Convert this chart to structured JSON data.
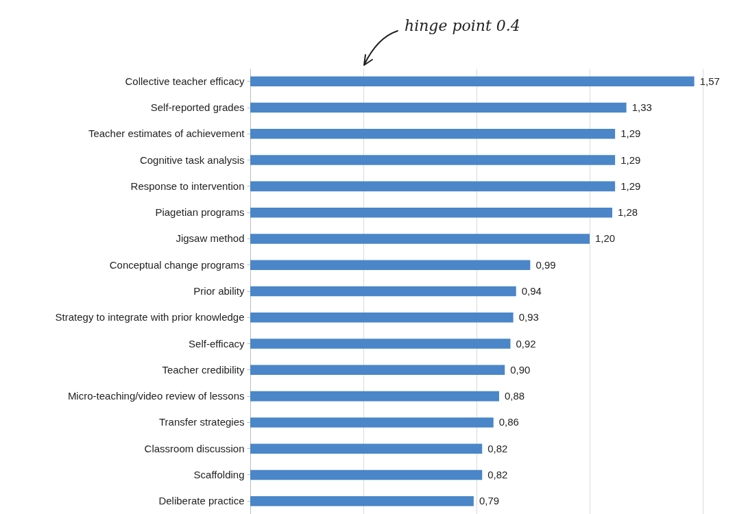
{
  "chart_data": {
    "type": "bar",
    "orientation": "horizontal",
    "categories": [
      "Collective teacher efficacy",
      "Self-reported grades",
      "Teacher estimates of achievement",
      "Cognitive task analysis",
      "Response to intervention",
      "Piagetian programs",
      "Jigsaw method",
      "Conceptual change programs",
      "Prior ability",
      "Strategy to integrate with prior knowledge",
      "Self-efficacy",
      "Teacher credibility",
      "Micro-teaching/video review of lessons",
      "Transfer strategies",
      "Classroom discussion",
      "Scaffolding",
      "Deliberate practice"
    ],
    "values": [
      1.57,
      1.33,
      1.29,
      1.29,
      1.29,
      1.28,
      1.2,
      0.99,
      0.94,
      0.93,
      0.92,
      0.9,
      0.88,
      0.86,
      0.82,
      0.82,
      0.79
    ],
    "value_labels": [
      "1,57",
      "1,33",
      "1,29",
      "1,29",
      "1,29",
      "1,28",
      "1,20",
      "0,99",
      "0,94",
      "0,93",
      "0,92",
      "0,90",
      "0,88",
      "0,86",
      "0,82",
      "0,82",
      "0,79"
    ],
    "color": "#4a86c8",
    "xlim": [
      0,
      1.6
    ],
    "xticks": [
      {
        "value": 0,
        "label": null
      },
      {
        "value": 0.4,
        "label": null
      },
      {
        "value": 0.8,
        "label": null
      },
      {
        "value": 1.2,
        "label": null
      },
      {
        "value": 1.6,
        "label": null
      }
    ],
    "grid": "x",
    "tick_labels": "y",
    "annotations": [
      "hinge point 0.4"
    ]
  }
}
